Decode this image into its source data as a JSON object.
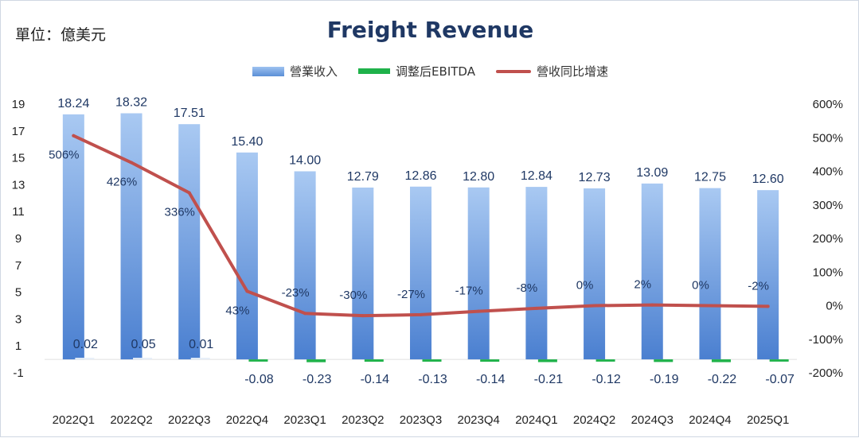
{
  "unit_label": "單位：億美元",
  "chart_data": {
    "type": "bar+line",
    "title": "Freight Revenue",
    "categories": [
      "2022Q1",
      "2022Q2",
      "2022Q3",
      "2022Q4",
      "2023Q1",
      "2023Q2",
      "2023Q3",
      "2023Q4",
      "2024Q1",
      "2024Q2",
      "2024Q3",
      "2024Q4",
      "2025Q1"
    ],
    "series": [
      {
        "name": "營業收入",
        "type": "bar",
        "axis": "left",
        "values": [
          18.24,
          18.32,
          17.51,
          15.4,
          14.0,
          12.79,
          12.86,
          12.8,
          12.84,
          12.73,
          13.09,
          12.75,
          12.6
        ],
        "labels": [
          "18.24",
          "18.32",
          "17.51",
          "15.40",
          "14.00",
          "12.79",
          "12.86",
          "12.80",
          "12.84",
          "12.73",
          "13.09",
          "12.75",
          "12.60"
        ]
      },
      {
        "name": "调整后EBITDA",
        "type": "bar",
        "axis": "left",
        "values": [
          0.02,
          0.05,
          0.01,
          -0.08,
          -0.23,
          -0.14,
          -0.13,
          -0.14,
          -0.21,
          -0.12,
          -0.19,
          -0.22,
          -0.07
        ],
        "labels": [
          "0.02",
          "0.05",
          "0.01",
          "-0.08",
          "-0.23",
          "-0.14",
          "-0.13",
          "-0.14",
          "-0.21",
          "-0.12",
          "-0.19",
          "-0.22",
          "-0.07"
        ]
      },
      {
        "name": "營收同比增速",
        "type": "line",
        "axis": "right",
        "values": [
          506,
          426,
          336,
          43,
          -23,
          -30,
          -27,
          -17,
          -8,
          0,
          2,
          0,
          -2
        ],
        "labels": [
          "506%",
          "426%",
          "336%",
          "43%",
          "-23%",
          "-30%",
          "-27%",
          "-17%",
          "-8%",
          "0%",
          "2%",
          "0%",
          "-2%"
        ]
      }
    ],
    "left_axis": {
      "range": [
        -1,
        19
      ],
      "ticks": [
        "-1",
        "1",
        "3",
        "5",
        "7",
        "9",
        "11",
        "13",
        "15",
        "17",
        "19"
      ]
    },
    "right_axis": {
      "range": [
        -200,
        600
      ],
      "ticks": [
        "-200%",
        "-100%",
        "0%",
        "100%",
        "200%",
        "300%",
        "400%",
        "500%",
        "600%"
      ]
    },
    "colors": {
      "bar_top": "#9ec2f0",
      "bar_bottom": "#4a7fd0",
      "ebitda": "#1fb24a",
      "line": "#c0504d",
      "title": "#1f3864"
    },
    "legend_position": "top-center"
  }
}
